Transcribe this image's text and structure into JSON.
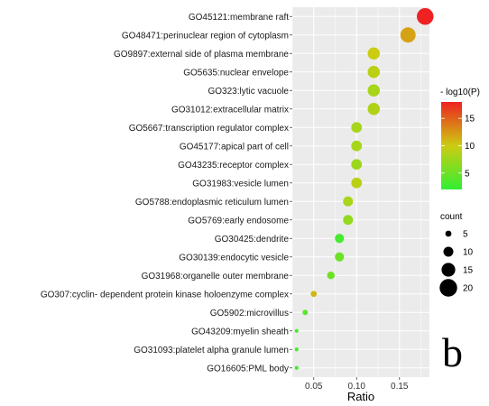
{
  "chart_data": {
    "type": "scatter",
    "title": "",
    "xlabel": "Ratio",
    "ylabel": "",
    "xlim": [
      0.025,
      0.185
    ],
    "x_ticks": [
      0.05,
      0.1,
      0.15
    ],
    "x_tick_labels": [
      "0.05",
      "0.10",
      "0.15"
    ],
    "grid": true,
    "legend_placement": "right",
    "color_scale": {
      "title": "- log10(P)",
      "min": 2,
      "max": 18,
      "low_color": "#33ee33",
      "mid_color": "#cccc11",
      "high_color": "#ee2222",
      "ticks": [
        5,
        10,
        15
      ],
      "tick_labels": [
        "5",
        "10",
        "15"
      ]
    },
    "size_scale": {
      "title": "count",
      "values": [
        5,
        10,
        15,
        20
      ],
      "labels": [
        "5",
        "10",
        "15",
        "20"
      ]
    },
    "categories": [
      "GO45121:membrane raft",
      "GO48471:perinuclear region of cytoplasm",
      "GO9897:external side of plasma membrane",
      "GO5635:nuclear envelope",
      "GO323:lytic vacuole",
      "GO31012:extracellular matrix",
      "GO5667:transcription regulator complex",
      "GO45177:apical part of cell",
      "GO43235:receptor complex",
      "GO31983:vesicle lumen",
      "GO5788:endoplasmic reticulum lumen",
      "GO5769:early endosome",
      "GO30425:dendrite",
      "GO30139:endocytic vesicle",
      "GO31968:organelle outer membrane",
      "GO307:cyclin- dependent protein kinase holoenzyme complex",
      "GO5902:microvillus",
      "GO43209:myelin sheath",
      "GO31093:platelet alpha granule lumen",
      "GO16605:PML body"
    ],
    "points": [
      {
        "x": 0.18,
        "count": 19,
        "neglog10p": 18
      },
      {
        "x": 0.16,
        "count": 17,
        "neglog10p": 12
      },
      {
        "x": 0.12,
        "count": 13,
        "neglog10p": 10
      },
      {
        "x": 0.12,
        "count": 13,
        "neglog10p": 9
      },
      {
        "x": 0.12,
        "count": 13,
        "neglog10p": 8
      },
      {
        "x": 0.12,
        "count": 13,
        "neglog10p": 8.5
      },
      {
        "x": 0.1,
        "count": 11,
        "neglog10p": 8
      },
      {
        "x": 0.1,
        "count": 11,
        "neglog10p": 8
      },
      {
        "x": 0.1,
        "count": 11,
        "neglog10p": 7.5
      },
      {
        "x": 0.1,
        "count": 11,
        "neglog10p": 9
      },
      {
        "x": 0.09,
        "count": 10,
        "neglog10p": 8
      },
      {
        "x": 0.09,
        "count": 10,
        "neglog10p": 7
      },
      {
        "x": 0.08,
        "count": 9,
        "neglog10p": 3
      },
      {
        "x": 0.08,
        "count": 9,
        "neglog10p": 5
      },
      {
        "x": 0.07,
        "count": 7,
        "neglog10p": 5
      },
      {
        "x": 0.05,
        "count": 5,
        "neglog10p": 11
      },
      {
        "x": 0.04,
        "count": 4,
        "neglog10p": 4
      },
      {
        "x": 0.03,
        "count": 2,
        "neglog10p": 3
      },
      {
        "x": 0.03,
        "count": 2,
        "neglog10p": 3
      },
      {
        "x": 0.03,
        "count": 2,
        "neglog10p": 3
      }
    ]
  },
  "panel_label": "b"
}
